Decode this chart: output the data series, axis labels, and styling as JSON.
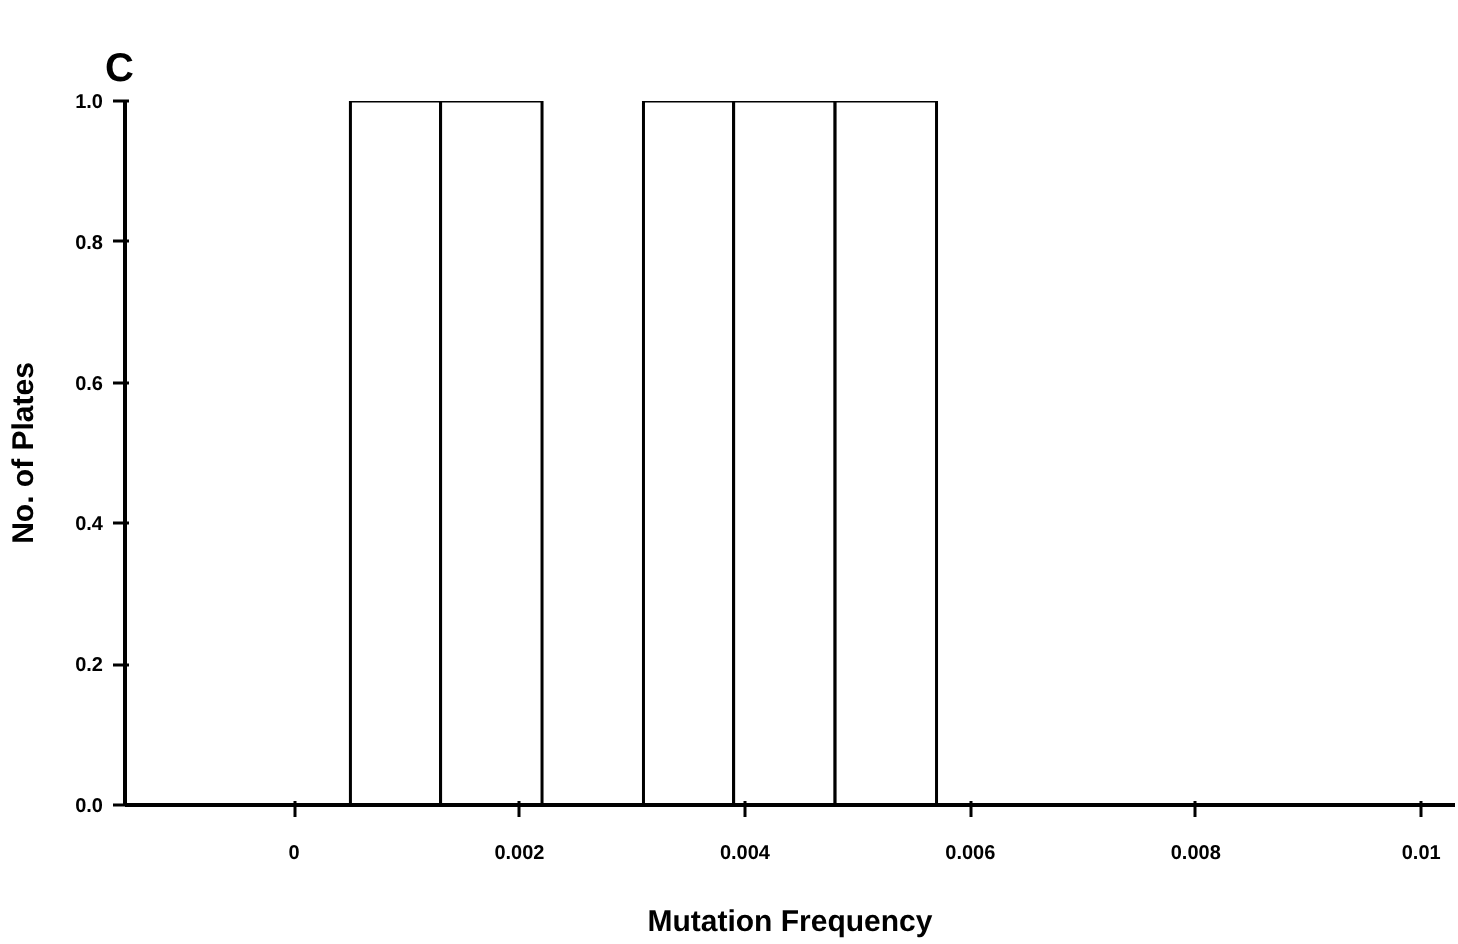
{
  "chart_data": {
    "type": "histogram",
    "title": "C",
    "xlabel": "Mutation Frequency",
    "ylabel": "No. of Plates",
    "bins": [
      0.0005,
      0.0013,
      0.0022,
      0.0031,
      0.0039,
      0.0048,
      0.0057
    ],
    "values": [
      1,
      1,
      0,
      1,
      1,
      1
    ],
    "color": "#ffffff",
    "xlim": [
      -0.0015,
      0.0103
    ],
    "xticks": [
      0,
      0.002,
      0.004,
      0.006,
      0.008,
      0.01
    ],
    "ylim": [
      0,
      1.0
    ],
    "yticks": [
      {
        "value": 0,
        "label": "0.0"
      },
      {
        "value": 0.2,
        "label": "0.2"
      },
      {
        "value": 0.4,
        "label": "0.4"
      },
      {
        "value": 0.6,
        "label": "0.6"
      },
      {
        "value": 0.8,
        "label": "0.8"
      },
      {
        "value": 1.0,
        "label": "1.0"
      }
    ],
    "grid": false
  }
}
